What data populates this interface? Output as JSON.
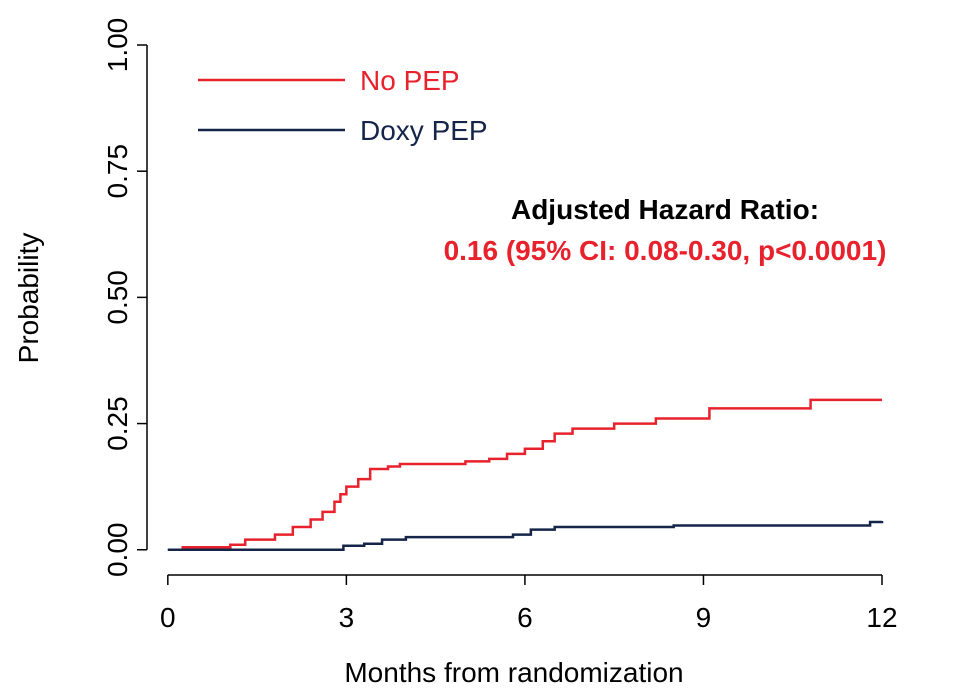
{
  "chart_data": {
    "type": "step",
    "x_label": "Months from randomization",
    "y_label": "Probability",
    "annotations": [
      "Adjusted Hazard Ratio:",
      "0.16 (95% CI: 0.08-0.30, p<0.0001)"
    ],
    "annotation_colors": [
      "#000000",
      "#e8222c"
    ],
    "xlim": [
      -0.35,
      12
    ],
    "xticks": [
      0,
      3,
      6,
      9,
      12
    ],
    "ylim": [
      -0.05,
      1.0
    ],
    "yticks": [
      {
        "value": 0,
        "label": "0.00"
      },
      {
        "value": 0.25,
        "label": "0.25"
      },
      {
        "value": 0.5,
        "label": "0.50"
      },
      {
        "value": 0.75,
        "label": "0.75"
      },
      {
        "value": 1.0,
        "label": "1.00"
      }
    ],
    "legend": "top-left",
    "series": [
      {
        "name": "No PEP",
        "color": "#e8222c",
        "x": [
          0,
          0.25,
          1.05,
          1.3,
          1.8,
          2.1,
          2.4,
          2.6,
          2.8,
          2.9,
          3.0,
          3.2,
          3.4,
          3.7,
          3.9,
          5.0,
          5.4,
          5.7,
          6.0,
          6.3,
          6.5,
          6.8,
          7.5,
          8.2,
          9.1,
          10.8,
          12
        ],
        "values": [
          0,
          0.005,
          0.01,
          0.02,
          0.03,
          0.045,
          0.06,
          0.075,
          0.095,
          0.11,
          0.125,
          0.14,
          0.16,
          0.165,
          0.17,
          0.175,
          0.18,
          0.19,
          0.2,
          0.215,
          0.23,
          0.24,
          0.25,
          0.26,
          0.28,
          0.297,
          0.297
        ]
      },
      {
        "name": "Doxy PEP",
        "color": "#15254a",
        "x": [
          0,
          2.95,
          3.3,
          3.6,
          4.0,
          5.8,
          6.1,
          6.5,
          8.5,
          11.8,
          12
        ],
        "values": [
          0,
          0.008,
          0.012,
          0.02,
          0.025,
          0.03,
          0.04,
          0.045,
          0.048,
          0.055,
          0.057
        ]
      }
    ]
  }
}
